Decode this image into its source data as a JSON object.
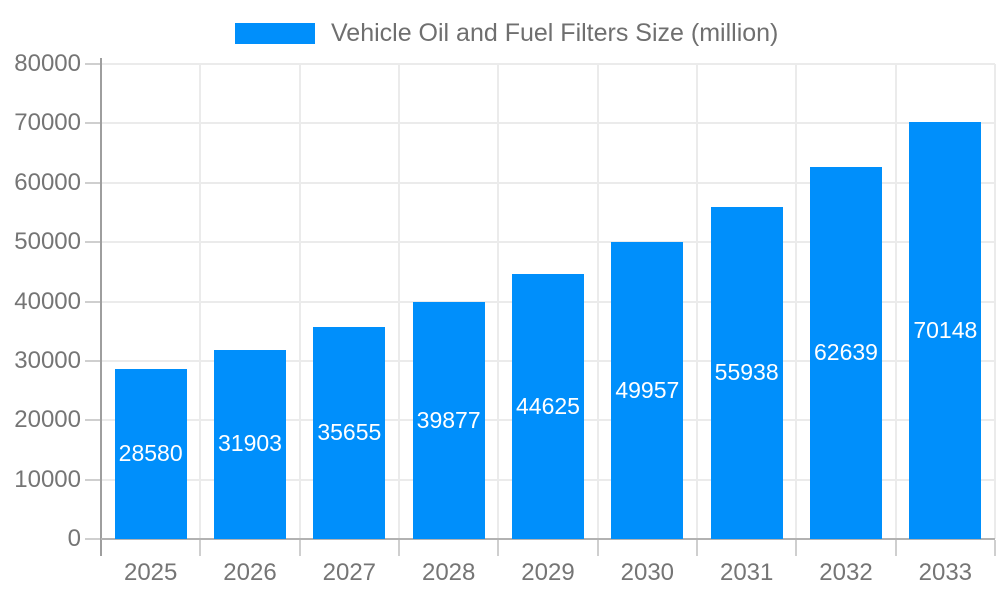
{
  "chart_data": {
    "type": "bar",
    "title": "Vehicle Oil and Fuel Filters Size (million)",
    "legend": {
      "label": "Vehicle Oil and Fuel Filters Size (million)",
      "position": "top"
    },
    "categories": [
      "2025",
      "2026",
      "2027",
      "2028",
      "2029",
      "2030",
      "2031",
      "2032",
      "2033"
    ],
    "values": [
      28580,
      31903,
      35655,
      39877,
      44625,
      49957,
      55938,
      62639,
      70148
    ],
    "xlabel": "",
    "ylabel": "",
    "ylim": [
      0,
      80000
    ],
    "y_ticks": [
      0,
      10000,
      20000,
      30000,
      40000,
      50000,
      60000,
      70000,
      80000
    ],
    "grid": true,
    "value_labels": "inside-center",
    "colors": {
      "bar": "#008FFB",
      "value_label": "#FFFFFF",
      "axis_text": "#757575",
      "title_text": "#6F6F6F",
      "gridline": "#EBEBEB",
      "y_axis_line": "#9E9E9E",
      "x_axis_line": "#B2B2B2",
      "tick_mark": "#CFCFCF",
      "background": "#FFFFFF"
    }
  }
}
